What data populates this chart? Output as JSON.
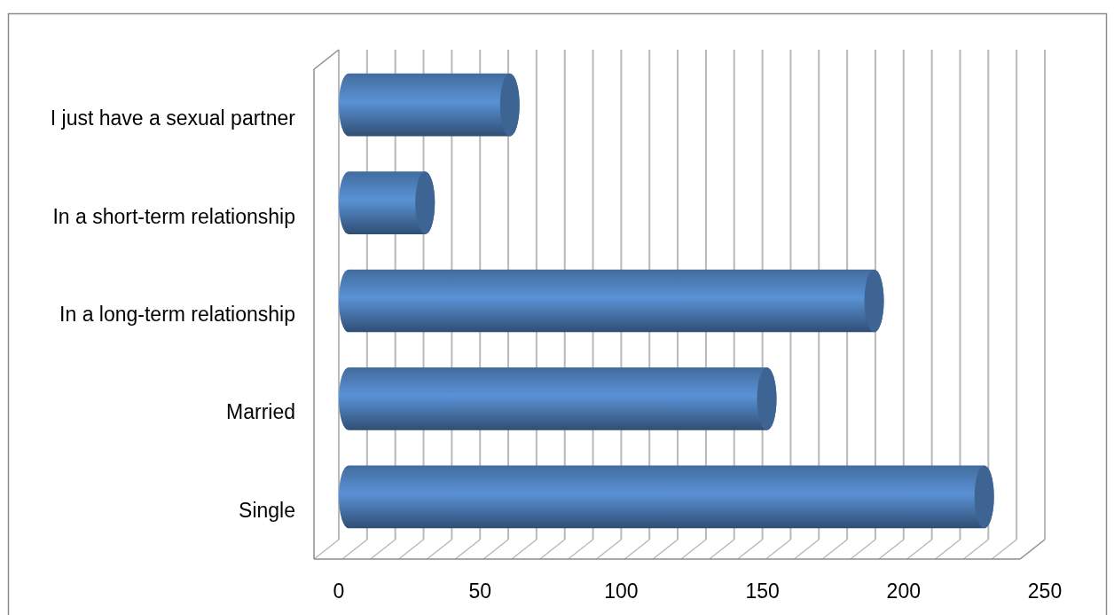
{
  "chart_data": {
    "type": "bar",
    "orientation": "horizontal",
    "categories": [
      "I just have a sexual partner",
      "In a short-term relationship",
      "In a long-term relationship",
      "Married",
      "Single"
    ],
    "values": [
      64,
      34,
      193,
      155,
      232
    ],
    "color": "#4f81bd",
    "xlim": [
      0,
      250
    ],
    "xticks": [
      0,
      {
        "value": 10,
        "label": null
      },
      {
        "value": 20,
        "label": null
      },
      {
        "value": 30,
        "label": null
      },
      {
        "value": 40,
        "label": null
      },
      50,
      {
        "value": 60,
        "label": null
      },
      {
        "value": 70,
        "label": null
      },
      {
        "value": 80,
        "label": null
      },
      {
        "value": 90,
        "label": null
      },
      100,
      {
        "value": 110,
        "label": null
      },
      {
        "value": 120,
        "label": null
      },
      {
        "value": 130,
        "label": null
      },
      {
        "value": 140,
        "label": null
      },
      150,
      {
        "value": 160,
        "label": null
      },
      {
        "value": 170,
        "label": null
      },
      {
        "value": 180,
        "label": null
      },
      {
        "value": 190,
        "label": null
      },
      200,
      {
        "value": 210,
        "label": null
      },
      {
        "value": 220,
        "label": null
      },
      {
        "value": 230,
        "label": null
      },
      {
        "value": 240,
        "label": null
      },
      250
    ],
    "grid": "x"
  }
}
